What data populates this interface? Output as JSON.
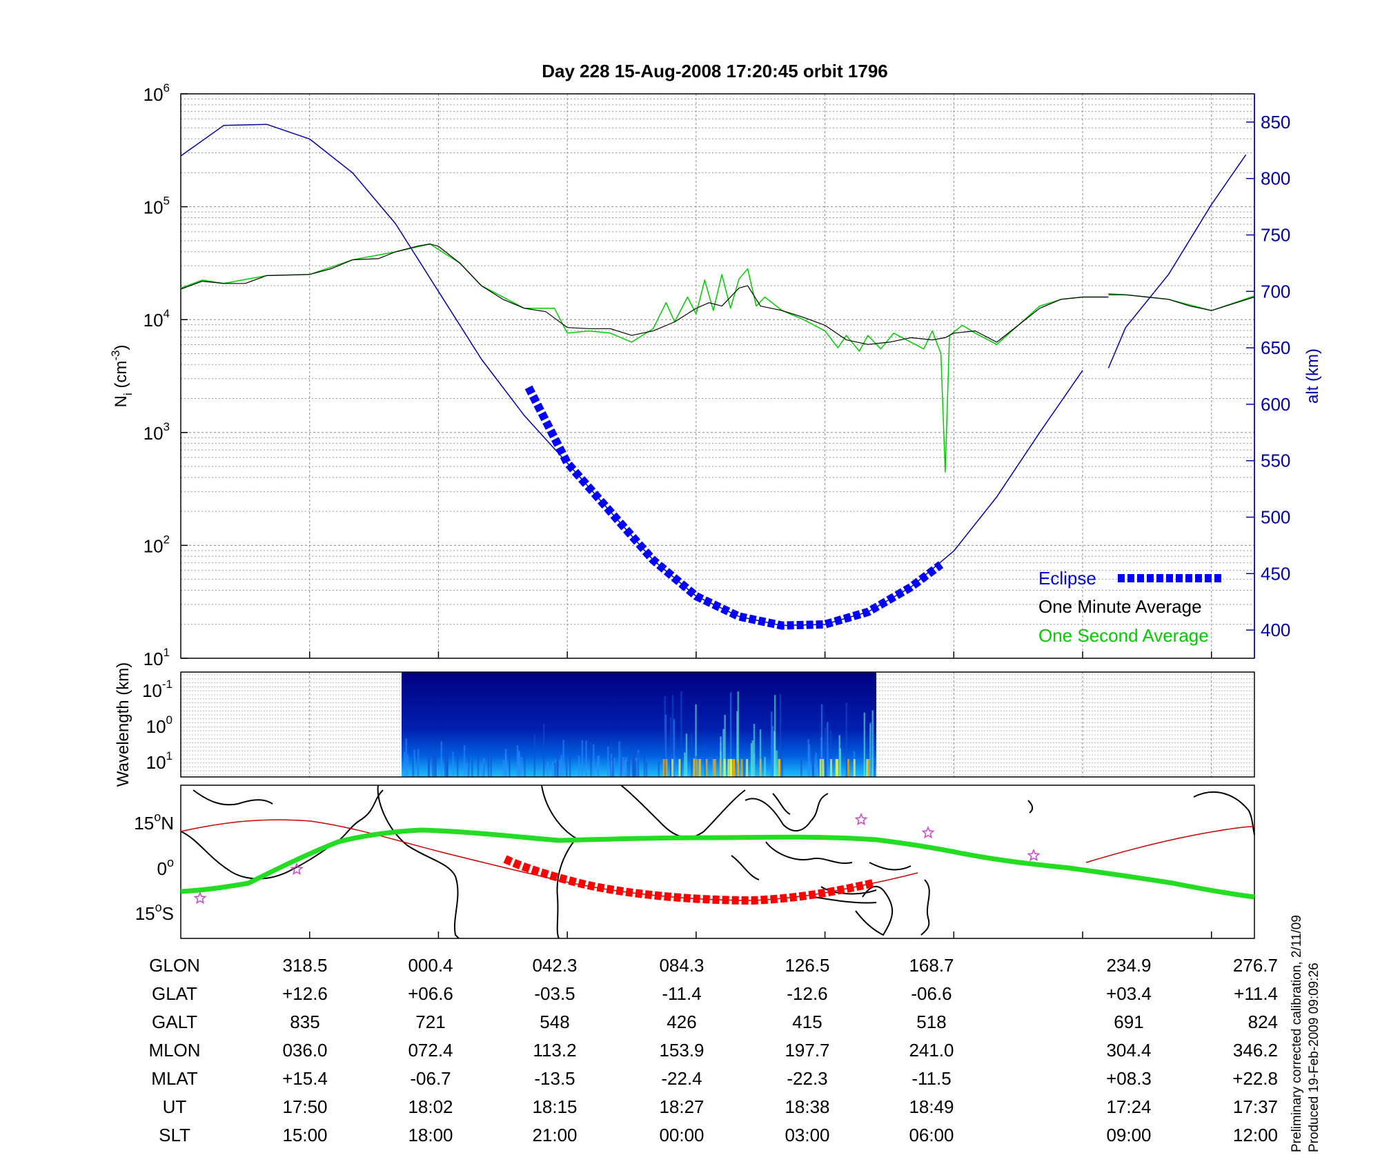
{
  "title": "Day 228  15-Aug-2008 17:20:45   orbit 1796",
  "colors": {
    "alt_line": "#0000aa",
    "eclipse": "#0000ff",
    "one_minute": "#000000",
    "one_second": "#00cc00",
    "ground_track": "#cc0000",
    "ground_eclipse": "#ff0000",
    "mag_equator": "#22dd22",
    "star": "#cc44cc",
    "spectrogram_bg": "#000088"
  },
  "main_panel": {
    "ylabel_base": "N",
    "ylabel_sub": "i",
    "ylabel_unit": "(cm",
    "ylabel_exp": "-3",
    "ylabel_close": ")",
    "left_ticks": [
      {
        "base": "10",
        "exp": "1",
        "value": 1
      },
      {
        "base": "10",
        "exp": "2",
        "value": 2
      },
      {
        "base": "10",
        "exp": "3",
        "value": 3
      },
      {
        "base": "10",
        "exp": "4",
        "value": 4
      },
      {
        "base": "10",
        "exp": "5",
        "value": 5
      },
      {
        "base": "10",
        "exp": "6",
        "value": 6
      }
    ],
    "right_label": "alt (km)",
    "right_ticks": [
      "400",
      "450",
      "500",
      "550",
      "600",
      "650",
      "700",
      "750",
      "800",
      "850"
    ],
    "legend": {
      "eclipse": "Eclipse",
      "one_minute": "One Minute Average",
      "one_second": "One Second Average"
    }
  },
  "spectrogram_panel": {
    "ylabel": "Wavelength (km)",
    "ticks": [
      {
        "base": "10",
        "exp": "-1"
      },
      {
        "base": "10",
        "exp": "0"
      },
      {
        "base": "10",
        "exp": "1"
      }
    ]
  },
  "map_panel": {
    "ticks": [
      {
        "num": "15",
        "sym": "o",
        "dir": "N"
      },
      {
        "num": "0",
        "sym": "o",
        "dir": ""
      },
      {
        "num": "15",
        "sym": "o",
        "dir": "S"
      }
    ]
  },
  "table": {
    "rows": [
      {
        "label": "GLON",
        "values": [
          "318.5",
          "000.4",
          "042.3",
          "084.3",
          "126.5",
          "168.7",
          "234.9",
          "276.7"
        ]
      },
      {
        "label": "GLAT",
        "values": [
          "+12.6",
          "+06.6",
          "-03.5",
          "-11.4",
          "-12.6",
          "-06.6",
          "+03.4",
          "+11.4"
        ]
      },
      {
        "label": "GALT",
        "values": [
          "835",
          "721",
          "548",
          "426",
          "415",
          "518",
          "691",
          "824"
        ]
      },
      {
        "label": "MLON",
        "values": [
          "036.0",
          "072.4",
          "113.2",
          "153.9",
          "197.7",
          "241.0",
          "304.4",
          "346.2"
        ]
      },
      {
        "label": "MLAT",
        "values": [
          "+15.4",
          "-06.7",
          "-13.5",
          "-22.4",
          "-22.3",
          "-11.5",
          "+08.3",
          "+22.8"
        ]
      },
      {
        "label": "UT",
        "values": [
          "17:50",
          "18:02",
          "18:15",
          "18:27",
          "18:38",
          "18:49",
          "17:24",
          "17:37"
        ]
      },
      {
        "label": "SLT",
        "values": [
          "15:00",
          "18:00",
          "21:00",
          "00:00",
          "03:00",
          "06:00",
          "09:00",
          "12:00"
        ]
      }
    ]
  },
  "footer": {
    "line1": "Preliminary corrected calibration, 2/11/09",
    "line2": "Produced 19-Feb-2009 09:09:26"
  },
  "chart_data": {
    "type": "line",
    "x_units": "SLT hours",
    "x_ticks": [
      "15:00",
      "18:00",
      "21:00",
      "00:00",
      "03:00",
      "06:00",
      "09:00",
      "12:00"
    ],
    "left_axis": {
      "scale": "log",
      "ylim": [
        10,
        1000000
      ]
    },
    "right_axis": {
      "ylim": [
        375,
        875
      ]
    },
    "series": [
      {
        "name": "alt",
        "axis": "right",
        "segments": [
          [
            [
              12,
              820
            ],
            [
              13,
              847
            ],
            [
              14,
              848
            ],
            [
              15,
              835
            ],
            [
              16,
              805
            ],
            [
              17,
              760
            ],
            [
              18,
              700
            ],
            [
              19,
              640
            ],
            [
              20,
              590
            ],
            [
              21,
              548
            ],
            [
              22,
              505
            ],
            [
              23,
              462
            ],
            [
              24,
              430
            ],
            [
              25,
              412
            ],
            [
              26,
              404
            ],
            [
              27,
              405
            ],
            [
              28,
              416
            ],
            [
              29,
              438
            ],
            [
              30,
              470
            ],
            [
              31,
              518
            ],
            [
              32,
              575
            ],
            [
              33,
              630
            ]
          ],
          [
            [
              33.6,
              632
            ],
            [
              34,
              668
            ],
            [
              35,
              715
            ],
            [
              36,
              777
            ],
            [
              36.8,
              821
            ]
          ]
        ]
      },
      {
        "name": "Eclipse",
        "axis": "right",
        "segments": [
          [
            [
              20.1,
              615
            ],
            [
              21,
              548
            ],
            [
              22,
              505
            ],
            [
              23,
              462
            ],
            [
              24,
              430
            ],
            [
              25,
              412
            ],
            [
              26,
              404
            ],
            [
              27,
              405
            ],
            [
              28,
              416
            ],
            [
              29,
              438
            ],
            [
              29.7,
              458
            ]
          ]
        ]
      },
      {
        "name": "One Minute Average",
        "axis": "left",
        "segments": [
          [
            [
              12,
              4.27
            ],
            [
              12.5,
              4.34
            ],
            [
              13,
              4.32
            ],
            [
              13.5,
              4.32
            ],
            [
              14,
              4.39
            ],
            [
              15,
              4.4
            ],
            [
              15.5,
              4.45
            ],
            [
              16,
              4.53
            ],
            [
              16.6,
              4.54
            ],
            [
              17,
              4.6
            ],
            [
              17.5,
              4.65
            ],
            [
              17.8,
              4.67
            ],
            [
              18,
              4.65
            ],
            [
              18.5,
              4.5
            ],
            [
              19,
              4.3
            ],
            [
              19.5,
              4.18
            ],
            [
              20,
              4.1
            ],
            [
              20.5,
              4.07
            ],
            [
              21,
              3.93
            ],
            [
              21.5,
              3.92
            ],
            [
              22,
              3.92
            ],
            [
              22.5,
              3.86
            ],
            [
              23,
              3.9
            ],
            [
              23.5,
              3.98
            ],
            [
              24,
              4.1
            ],
            [
              24.3,
              4.15
            ],
            [
              24.6,
              4.12
            ],
            [
              25,
              4.28
            ],
            [
              25.2,
              4.3
            ],
            [
              25.5,
              4.12
            ],
            [
              26,
              4.08
            ],
            [
              26.5,
              4.02
            ],
            [
              27,
              3.95
            ],
            [
              27.5,
              3.82
            ],
            [
              28,
              3.78
            ],
            [
              28.5,
              3.8
            ],
            [
              29,
              3.84
            ],
            [
              29.5,
              3.82
            ],
            [
              29.8,
              3.84
            ],
            [
              30,
              3.88
            ],
            [
              30.5,
              3.9
            ],
            [
              31,
              3.8
            ],
            [
              31.5,
              3.95
            ],
            [
              32,
              4.1
            ],
            [
              32.5,
              4.18
            ],
            [
              33,
              4.2
            ],
            [
              33.6,
              4.2
            ]
          ],
          [
            [
              33.6,
              4.22
            ],
            [
              34,
              4.22
            ],
            [
              34.5,
              4.2
            ],
            [
              35,
              4.18
            ],
            [
              35.5,
              4.12
            ],
            [
              36,
              4.08
            ],
            [
              36.5,
              4.14
            ],
            [
              37,
              4.2
            ]
          ]
        ]
      },
      {
        "name": "One Second Average",
        "axis": "left",
        "segments": [
          [
            [
              12,
              4.28
            ],
            [
              12.5,
              4.35
            ],
            [
              13,
              4.32
            ],
            [
              14,
              4.39
            ],
            [
              15,
              4.4
            ],
            [
              16,
              4.53
            ],
            [
              17,
              4.6
            ],
            [
              17.8,
              4.67
            ],
            [
              18.5,
              4.5
            ],
            [
              19,
              4.3
            ],
            [
              20,
              4.1
            ],
            [
              20.7,
              4.1
            ],
            [
              21,
              3.88
            ],
            [
              21.5,
              3.9
            ],
            [
              22,
              3.88
            ],
            [
              22.5,
              3.8
            ],
            [
              23,
              3.92
            ],
            [
              23.3,
              4.15
            ],
            [
              23.5,
              3.98
            ],
            [
              23.8,
              4.2
            ],
            [
              24,
              4.05
            ],
            [
              24.2,
              4.35
            ],
            [
              24.4,
              4.08
            ],
            [
              24.6,
              4.4
            ],
            [
              24.8,
              4.1
            ],
            [
              25,
              4.36
            ],
            [
              25.2,
              4.45
            ],
            [
              25.4,
              4.12
            ],
            [
              25.6,
              4.2
            ],
            [
              26,
              4.08
            ],
            [
              26.5,
              4.0
            ],
            [
              27,
              3.9
            ],
            [
              27.3,
              3.75
            ],
            [
              27.5,
              3.86
            ],
            [
              27.8,
              3.72
            ],
            [
              28,
              3.86
            ],
            [
              28.3,
              3.74
            ],
            [
              28.6,
              3.88
            ],
            [
              29,
              3.8
            ],
            [
              29.3,
              3.74
            ],
            [
              29.5,
              3.9
            ],
            [
              29.7,
              3.7
            ],
            [
              29.8,
              2.65
            ],
            [
              29.9,
              3.86
            ],
            [
              30.2,
              3.95
            ],
            [
              30.5,
              3.88
            ],
            [
              31,
              3.78
            ],
            [
              31.5,
              3.95
            ],
            [
              32,
              4.12
            ],
            [
              32.5,
              4.18
            ],
            [
              33,
              4.2
            ],
            [
              33.6,
              4.2
            ]
          ],
          [
            [
              33.6,
              4.23
            ],
            [
              34,
              4.22
            ],
            [
              35,
              4.18
            ],
            [
              36,
              4.08
            ],
            [
              37,
              4.21
            ]
          ]
        ]
      }
    ]
  }
}
